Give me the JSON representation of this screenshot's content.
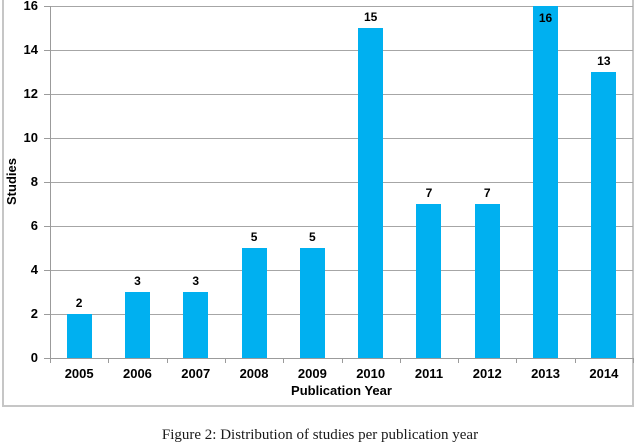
{
  "chart_data": {
    "type": "bar",
    "title": "",
    "categories": [
      "2005",
      "2006",
      "2007",
      "2008",
      "2009",
      "2010",
      "2011",
      "2012",
      "2013",
      "2014"
    ],
    "values": [
      2,
      3,
      3,
      5,
      5,
      15,
      7,
      7,
      16,
      13
    ],
    "xlabel": "Publication Year",
    "ylabel": "Studies",
    "ylim": [
      0,
      16
    ],
    "yticks": [
      0,
      2,
      4,
      6,
      8,
      10,
      12,
      14,
      16
    ],
    "grid": true,
    "legend": false,
    "data_labels": true,
    "bar_color": "#00b0f0"
  },
  "caption": "Figure 2: Distribution of studies per publication year",
  "colors": {
    "bar": "#00b0f0",
    "gridline": "#a6a6a6",
    "axis": "#9b9b9b",
    "frame_border": "#c6c6c6",
    "text": "#000000",
    "background": "#ffffff"
  }
}
